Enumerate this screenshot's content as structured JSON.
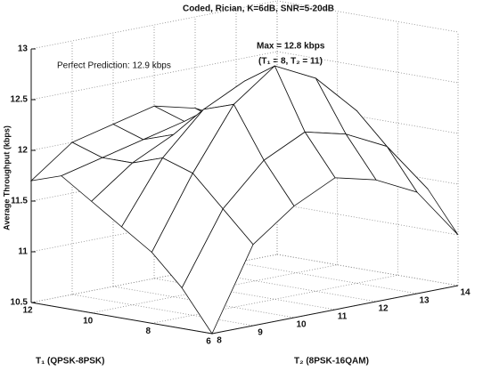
{
  "chart_data": {
    "type": "surface",
    "title": "Coded, Rician, K=6dB, SNR=5-20dB",
    "annotations": [
      "Max = 12.8 kbps",
      "(T₁ = 8, T₂ = 11)",
      "Perfect Prediction: 12.9 kbps"
    ],
    "x_label": "T₂ (8PSK-16QAM)",
    "y_label": "T₁ (QPSK-8PSK)",
    "z_label": "Average Throughput (kbps)",
    "x": [
      8,
      9,
      10,
      11,
      12,
      13,
      14
    ],
    "y": [
      6,
      7,
      8,
      9,
      10,
      11,
      12
    ],
    "z": [
      [
        10.5,
        11.3,
        11.6,
        11.8,
        11.7,
        11.5,
        11.0
      ],
      [
        10.9,
        11.6,
        12.0,
        12.2,
        12.1,
        11.9,
        11.4
      ],
      [
        11.2,
        11.9,
        12.5,
        12.8,
        12.6,
        12.2,
        11.6
      ],
      [
        11.4,
        12.0,
        12.4,
        12.6,
        12.4,
        12.1,
        11.6
      ],
      [
        11.6,
        11.9,
        12.1,
        12.3,
        12.2,
        11.9,
        11.5
      ],
      [
        11.8,
        11.9,
        12.0,
        12.1,
        12.0,
        11.8,
        11.4
      ],
      [
        11.7,
        12.0,
        12.1,
        12.2,
        12.1,
        11.9,
        11.5
      ]
    ],
    "xlim": [
      8,
      14
    ],
    "xticks": [
      8,
      9,
      10,
      11,
      12,
      13,
      14
    ],
    "ylim": [
      6,
      12
    ],
    "yticks": [
      6,
      8,
      10,
      12
    ],
    "zlim": [
      10.5,
      13
    ],
    "zticks": [
      10.5,
      11,
      11.5,
      12,
      12.5,
      13
    ],
    "grid": true,
    "color": "#ffffff"
  }
}
